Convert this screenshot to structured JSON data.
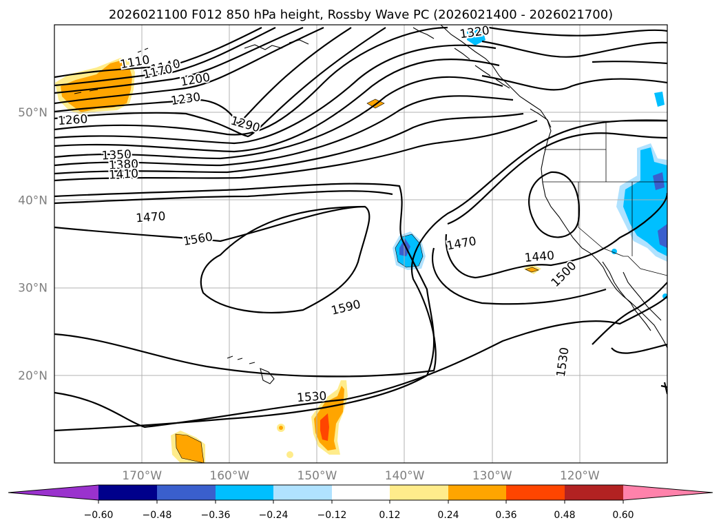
{
  "chart_data": {
    "type": "contour_map",
    "title": "2026021100 F012 850 hPa height, Rossby Wave PC (2026021400 - 2026021700)",
    "map_extent": {
      "lon": [
        -180,
        -110
      ],
      "lat": [
        10,
        60
      ]
    },
    "x_ticks": [
      "170°W",
      "160°W",
      "150°W",
      "140°W",
      "130°W",
      "120°W"
    ],
    "x_tick_values": [
      -170,
      -160,
      -150,
      -140,
      -130,
      -120
    ],
    "y_ticks": [
      "20°N",
      "30°N",
      "40°N",
      "50°N"
    ],
    "y_tick_values": [
      20,
      30,
      40,
      50
    ],
    "grid": true,
    "contour_levels_labeled": [
      {
        "value": "1110",
        "lon": -170.8,
        "lat": 55.7,
        "rot": -10
      },
      {
        "value": "1140",
        "lon": -167.3,
        "lat": 55.2,
        "rot": -12
      },
      {
        "value": "1170",
        "lon": -168.2,
        "lat": 54.6,
        "rot": -12
      },
      {
        "value": "1200",
        "lon": -163.9,
        "lat": 53.7,
        "rot": -10
      },
      {
        "value": "1230",
        "lon": -165.0,
        "lat": 51.5,
        "rot": -8
      },
      {
        "value": "1260",
        "lon": -177.9,
        "lat": 49.1,
        "rot": -4
      },
      {
        "value": "1290",
        "lon": -158.2,
        "lat": 48.6,
        "rot": 16
      },
      {
        "value": "1320",
        "lon": -132.0,
        "lat": 59.1,
        "rot": -8
      },
      {
        "value": "1350",
        "lon": -172.9,
        "lat": 45.1,
        "rot": -3
      },
      {
        "value": "1380",
        "lon": -172.1,
        "lat": 44.0,
        "rot": -3
      },
      {
        "value": "1410",
        "lon": -172.1,
        "lat": 42.9,
        "rot": -3
      },
      {
        "value": "1470",
        "lon": -169.0,
        "lat": 38.0,
        "rot": -4
      },
      {
        "value": "1470",
        "lon": -133.5,
        "lat": 35.0,
        "rot": -10
      },
      {
        "value": "1440",
        "lon": -124.6,
        "lat": 33.5,
        "rot": -5
      },
      {
        "value": "1500",
        "lon": -121.8,
        "lat": 31.5,
        "rot": -45
      },
      {
        "value": "1530",
        "lon": -121.9,
        "lat": 21.5,
        "rot": -82
      },
      {
        "value": "1560",
        "lon": -163.6,
        "lat": 35.5,
        "rot": -10
      },
      {
        "value": "1590",
        "lon": -146.7,
        "lat": 27.7,
        "rot": -14
      },
      {
        "value": "1530",
        "lon": -150.6,
        "lat": 17.5,
        "rot": -4
      }
    ],
    "shaded_anomalies": [
      {
        "sign": "positive",
        "lon": -173,
        "lat": 52.5,
        "max": 0.36
      },
      {
        "sign": "positive",
        "lon": -143.5,
        "lat": 51,
        "max": 0.24
      },
      {
        "sign": "positive",
        "lon": -150,
        "lat": 14.5,
        "max": 0.48
      },
      {
        "sign": "positive",
        "lon": -164,
        "lat": 12,
        "max": 0.36
      },
      {
        "sign": "positive",
        "lon": -127,
        "lat": 32,
        "max": 0.36
      },
      {
        "sign": "negative",
        "lon": -141,
        "lat": 35,
        "max": -0.48
      },
      {
        "sign": "negative",
        "lon": -132,
        "lat": 58.5,
        "max": -0.36
      },
      {
        "sign": "negative",
        "lon": -114,
        "lat": 40,
        "max": -0.48
      },
      {
        "sign": "negative",
        "lon": -111.5,
        "lat": 35,
        "max": -0.6
      }
    ],
    "colorbar": {
      "ticks": [
        "−0.60",
        "−0.48",
        "−0.36",
        "−0.24",
        "−0.12",
        "0.12",
        "0.24",
        "0.36",
        "0.48",
        "0.60"
      ],
      "colors": [
        "#9a32cd",
        "#00008b",
        "#3a5fcd",
        "#00bfff",
        "#b0e2ff",
        "#ffffff",
        "#ffec8b",
        "#ffa500",
        "#ff4500",
        "#b22222",
        "#ff82ab"
      ],
      "extend": "both"
    }
  }
}
